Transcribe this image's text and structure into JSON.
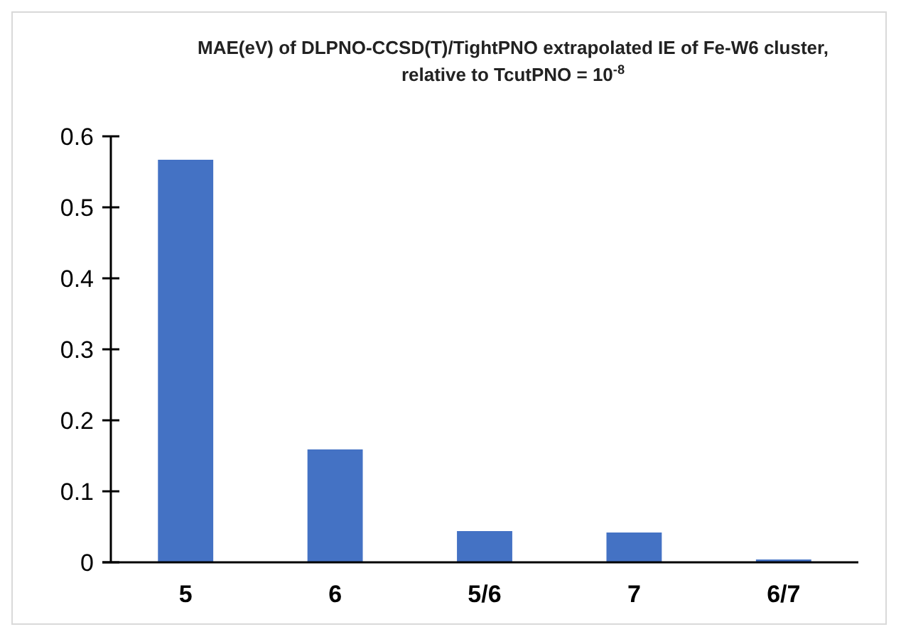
{
  "chart_data": {
    "type": "bar",
    "title": "MAE(eV) of DLPNO-CCSD(T)/TightPNO extrapolated IE of Fe-W6 cluster, relative to TcutPNO = 10$^{-8}$",
    "categories": [
      "5",
      "6",
      "5/6",
      "7",
      "6/7"
    ],
    "values": [
      0.567,
      0.159,
      0.044,
      0.042,
      0.004
    ],
    "color": "#4472c4",
    "ylim": [
      0,
      0.6
    ],
    "yticks": [
      0,
      0.1,
      0.2,
      0.3,
      0.4,
      0.5,
      0.6
    ]
  }
}
